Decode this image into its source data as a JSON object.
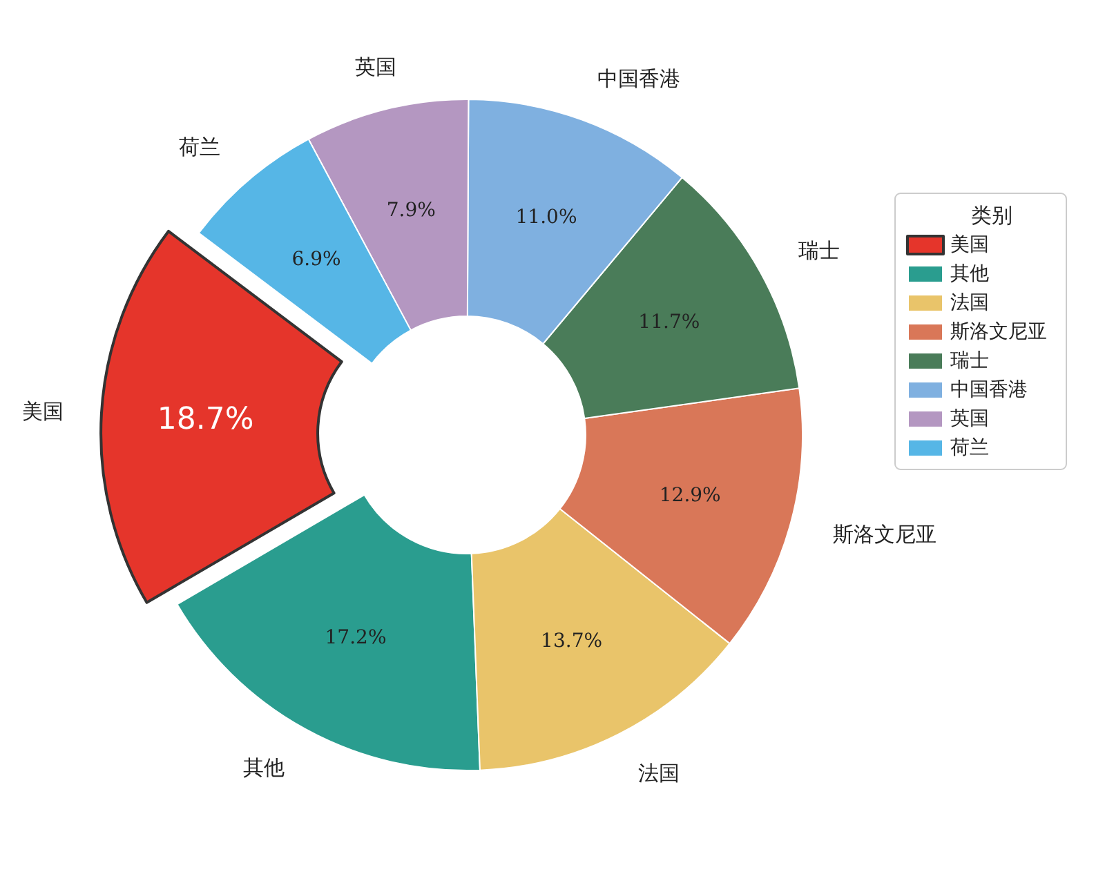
{
  "chart_data": {
    "type": "donut",
    "legend_title": "类别",
    "legend": "right",
    "categories": [
      "美国",
      "其他",
      "法国",
      "斯洛文尼亚",
      "瑞士",
      "中国香港",
      "英国",
      "荷兰"
    ],
    "values": [
      18.7,
      17.2,
      13.7,
      12.9,
      11.7,
      11.0,
      7.9,
      6.9
    ],
    "value_labels": [
      "18.7%",
      "17.2%",
      "13.7%",
      "12.9%",
      "11.7%",
      "11.0%",
      "7.9%",
      "6.9%"
    ],
    "colors": [
      "#e5352b",
      "#2a9d8f",
      "#e9c46a",
      "#d97758",
      "#4a7c59",
      "#7fb0e0",
      "#b497c1",
      "#56b6e6"
    ]
  }
}
